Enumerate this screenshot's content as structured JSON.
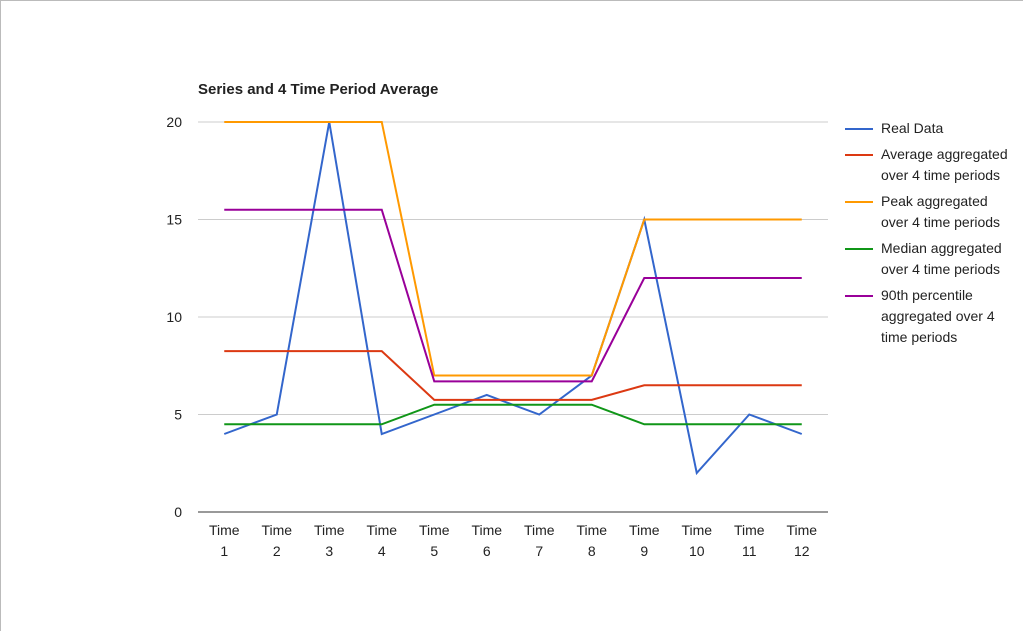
{
  "chart_data": {
    "type": "line",
    "title": "Series and 4 Time Period Average",
    "categories": [
      "Time 1",
      "Time 2",
      "Time 3",
      "Time 4",
      "Time 5",
      "Time 6",
      "Time 7",
      "Time 8",
      "Time 9",
      "Time 10",
      "Time 11",
      "Time 12"
    ],
    "series": [
      {
        "name": "Real Data",
        "color": "#3366cc",
        "values": [
          4,
          5,
          20,
          4,
          5,
          6,
          5,
          7,
          15,
          2,
          5,
          4
        ]
      },
      {
        "name": "Average aggregated over 4 time periods",
        "color": "#dc3912",
        "values": [
          8.25,
          8.25,
          8.25,
          8.25,
          5.75,
          5.75,
          5.75,
          5.75,
          6.5,
          6.5,
          6.5,
          6.5
        ]
      },
      {
        "name": "Peak aggregated over 4 time periods",
        "color": "#ff9900",
        "values": [
          20,
          20,
          20,
          20,
          7,
          7,
          7,
          7,
          15,
          15,
          15,
          15
        ]
      },
      {
        "name": "Median aggregated over 4 time periods",
        "color": "#109618",
        "values": [
          4.5,
          4.5,
          4.5,
          4.5,
          5.5,
          5.5,
          5.5,
          5.5,
          4.5,
          4.5,
          4.5,
          4.5
        ]
      },
      {
        "name": "90th percentile aggregated over 4 time periods",
        "color": "#990099",
        "values": [
          15.5,
          15.5,
          15.5,
          15.5,
          6.7,
          6.7,
          6.7,
          6.7,
          12,
          12,
          12,
          12
        ]
      }
    ],
    "ylim": [
      0,
      20
    ],
    "yticks": [
      0,
      5,
      10,
      15,
      20
    ],
    "grid": true,
    "legend": "right"
  }
}
